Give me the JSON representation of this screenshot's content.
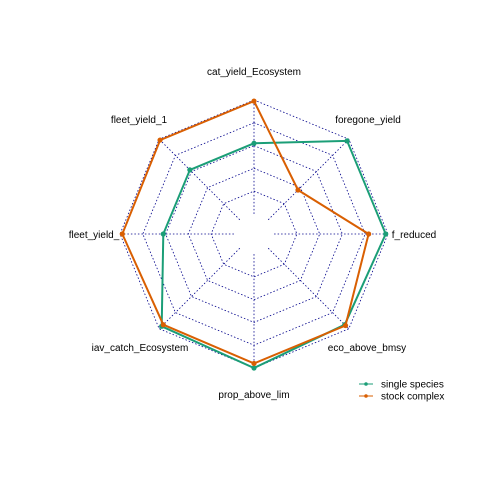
{
  "chart_data": {
    "type": "radar",
    "axes": [
      "cat_yield_Ecosystem",
      "foregone_yield",
      "f_reduced",
      "eco_above_bmsy",
      "prop_above_lim",
      "iav_catch_Ecosystem",
      "fleet_yield_",
      "fleet_yield_1"
    ],
    "range": [
      0,
      1
    ],
    "grid_levels": 5,
    "grid_style": "dotted",
    "series": [
      {
        "name": "single species",
        "color": "#1b9e77",
        "values": [
          0.62,
          0.98,
          0.98,
          0.95,
          1.0,
          0.97,
          0.62,
          0.62
        ]
      },
      {
        "name": "stock complex",
        "color": "#d95f02",
        "values": [
          0.99,
          0.37,
          0.83,
          0.96,
          0.96,
          0.95,
          0.98,
          0.99
        ]
      }
    ],
    "legend": {
      "placement": "bottom-right",
      "entries": [
        "single species",
        "stock complex"
      ]
    }
  }
}
